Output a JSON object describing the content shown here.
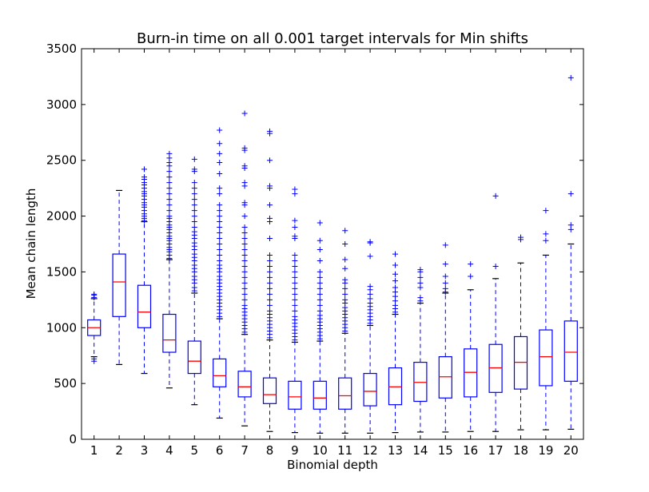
{
  "chart_data": {
    "type": "box",
    "title": "Burn-in time on all 0.001 target intervals for Min shifts",
    "xlabel": "Binomial depth",
    "ylabel": "Mean chain length",
    "ylim": [
      0,
      3500
    ],
    "yticks": [
      0,
      500,
      1000,
      1500,
      2000,
      2500,
      3000,
      3500
    ],
    "xlim": [
      0.5,
      20.5
    ],
    "categories": [
      "1",
      "2",
      "3",
      "4",
      "5",
      "6",
      "7",
      "8",
      "9",
      "10",
      "11",
      "12",
      "13",
      "14",
      "15",
      "16",
      "17",
      "18",
      "19",
      "20"
    ],
    "grid": false,
    "colors": {
      "box": "#0000ff",
      "median": "#ff0000",
      "whisker": "#0000ff",
      "cap": "#000000",
      "flier": "#0000ff"
    },
    "boxes": [
      {
        "x": "1",
        "whislo": 740,
        "q1": 930,
        "med": 1000,
        "q3": 1070,
        "whishi": 1260,
        "fliers": [
          700,
          720,
          1270,
          1290,
          1300
        ]
      },
      {
        "x": "2",
        "whislo": 670,
        "q1": 1100,
        "med": 1410,
        "q3": 1660,
        "whishi": 2230,
        "fliers": []
      },
      {
        "x": "3",
        "whislo": 590,
        "q1": 1000,
        "med": 1140,
        "q3": 1380,
        "whishi": 1950,
        "fliers": [
          1960,
          1980,
          2000,
          2020,
          2050,
          2080,
          2100,
          2120,
          2150,
          2180,
          2200,
          2220,
          2250,
          2280,
          2300,
          2330,
          2350,
          2420
        ]
      },
      {
        "x": "4",
        "whislo": 460,
        "q1": 780,
        "med": 890,
        "q3": 1120,
        "whishi": 1610,
        "fliers": [
          1620,
          1650,
          1680,
          1700,
          1720,
          1750,
          1780,
          1800,
          1820,
          1850,
          1880,
          1900,
          1920,
          1950,
          1980,
          2000,
          2050,
          2100,
          2150,
          2200,
          2250,
          2300,
          2350,
          2400,
          2450,
          2480,
          2520,
          2560
        ]
      },
      {
        "x": "5",
        "whislo": 310,
        "q1": 590,
        "med": 700,
        "q3": 880,
        "whishi": 1310,
        "fliers": [
          1330,
          1360,
          1400,
          1430,
          1460,
          1500,
          1530,
          1560,
          1600,
          1630,
          1660,
          1700,
          1730,
          1760,
          1800,
          1830,
          1860,
          1900,
          1950,
          2000,
          2050,
          2100,
          2150,
          2200,
          2250,
          2300,
          2400,
          2420,
          2510
        ]
      },
      {
        "x": "6",
        "whislo": 190,
        "q1": 470,
        "med": 570,
        "q3": 720,
        "whishi": 1080,
        "fliers": [
          1100,
          1130,
          1160,
          1190,
          1220,
          1250,
          1280,
          1310,
          1340,
          1370,
          1400,
          1430,
          1460,
          1500,
          1530,
          1560,
          1600,
          1650,
          1700,
          1750,
          1800,
          1850,
          1900,
          1950,
          2000,
          2050,
          2100,
          2200,
          2250,
          2380,
          2480,
          2560,
          2650,
          2770
        ]
      },
      {
        "x": "7",
        "whislo": 120,
        "q1": 380,
        "med": 470,
        "q3": 610,
        "whishi": 940,
        "fliers": [
          960,
          990,
          1020,
          1050,
          1080,
          1110,
          1140,
          1170,
          1200,
          1250,
          1300,
          1350,
          1400,
          1450,
          1500,
          1550,
          1600,
          1650,
          1700,
          1750,
          1800,
          1850,
          1900,
          2000,
          2100,
          2120,
          2270,
          2300,
          2430,
          2450,
          2590,
          2610,
          2920
        ]
      },
      {
        "x": "8",
        "whislo": 70,
        "q1": 320,
        "med": 400,
        "q3": 550,
        "whishi": 890,
        "fliers": [
          910,
          940,
          970,
          1000,
          1030,
          1060,
          1090,
          1120,
          1150,
          1200,
          1250,
          1300,
          1350,
          1400,
          1450,
          1500,
          1550,
          1600,
          1650,
          1800,
          1950,
          1980,
          2100,
          2250,
          2270,
          2500,
          2740,
          2760
        ]
      },
      {
        "x": "9",
        "whislo": 60,
        "q1": 270,
        "med": 380,
        "q3": 520,
        "whishi": 870,
        "fliers": [
          890,
          920,
          950,
          980,
          1010,
          1040,
          1070,
          1100,
          1150,
          1200,
          1250,
          1300,
          1350,
          1400,
          1450,
          1500,
          1550,
          1600,
          1650,
          1800,
          1820,
          1900,
          1960,
          2200,
          2240
        ]
      },
      {
        "x": "10",
        "whislo": 55,
        "q1": 270,
        "med": 370,
        "q3": 520,
        "whishi": 880,
        "fliers": [
          900,
          930,
          960,
          990,
          1020,
          1050,
          1080,
          1110,
          1150,
          1200,
          1250,
          1300,
          1350,
          1400,
          1450,
          1500,
          1600,
          1700,
          1780,
          1940
        ]
      },
      {
        "x": "11",
        "whislo": 55,
        "q1": 270,
        "med": 390,
        "q3": 550,
        "whishi": 950,
        "fliers": [
          970,
          1000,
          1030,
          1060,
          1090,
          1120,
          1150,
          1180,
          1220,
          1250,
          1300,
          1350,
          1400,
          1430,
          1530,
          1610,
          1750,
          1870
        ]
      },
      {
        "x": "12",
        "whislo": 55,
        "q1": 300,
        "med": 430,
        "q3": 590,
        "whishi": 1020,
        "fliers": [
          1040,
          1070,
          1100,
          1130,
          1160,
          1190,
          1220,
          1260,
          1300,
          1340,
          1370,
          1640,
          1760,
          1770
        ]
      },
      {
        "x": "13",
        "whislo": 60,
        "q1": 310,
        "med": 470,
        "q3": 640,
        "whishi": 1120,
        "fliers": [
          1140,
          1170,
          1200,
          1240,
          1280,
          1320,
          1360,
          1420,
          1480,
          1560,
          1660
        ]
      },
      {
        "x": "14",
        "whislo": 65,
        "q1": 340,
        "med": 510,
        "q3": 690,
        "whishi": 1220,
        "fliers": [
          1240,
          1270,
          1360,
          1400,
          1450,
          1500,
          1520
        ]
      },
      {
        "x": "15",
        "whislo": 65,
        "q1": 370,
        "med": 560,
        "q3": 740,
        "whishi": 1310,
        "fliers": [
          1320,
          1350,
          1400,
          1460,
          1570,
          1740
        ]
      },
      {
        "x": "16",
        "whislo": 70,
        "q1": 380,
        "med": 600,
        "q3": 810,
        "whishi": 1340,
        "fliers": [
          1460,
          1570
        ]
      },
      {
        "x": "17",
        "whislo": 70,
        "q1": 420,
        "med": 640,
        "q3": 850,
        "whishi": 1440,
        "fliers": [
          1550,
          2180
        ]
      },
      {
        "x": "18",
        "whislo": 85,
        "q1": 450,
        "med": 690,
        "q3": 920,
        "whishi": 1580,
        "fliers": [
          1790,
          1810
        ]
      },
      {
        "x": "19",
        "whislo": 85,
        "q1": 480,
        "med": 740,
        "q3": 980,
        "whishi": 1650,
        "fliers": [
          1780,
          1840,
          2050
        ]
      },
      {
        "x": "20",
        "whislo": 90,
        "q1": 520,
        "med": 780,
        "q3": 1060,
        "whishi": 1750,
        "fliers": [
          1880,
          1920,
          2200,
          3240
        ]
      }
    ]
  }
}
